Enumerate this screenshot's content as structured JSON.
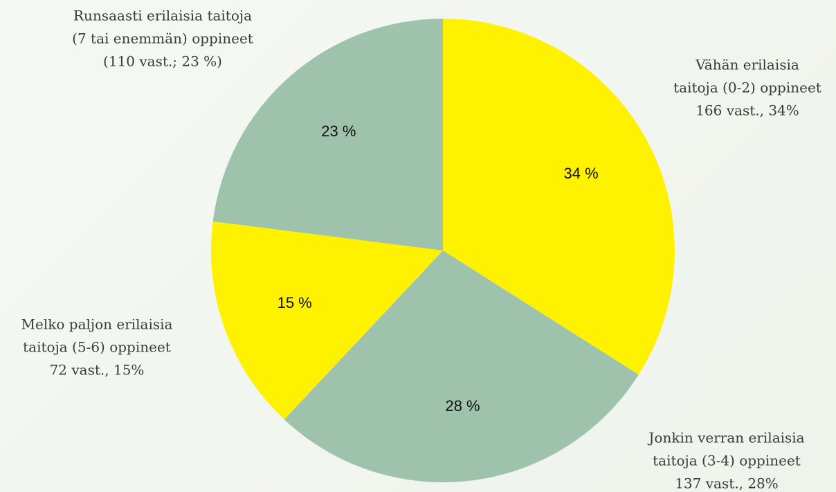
{
  "chart_data": {
    "type": "pie",
    "categories": [
      [
        "Vähän erilaisia",
        "taitoja (0-2) oppineet",
        "166 vast., 34%"
      ],
      [
        "Jonkin verran erilaisia",
        "taitoja (3-4) oppineet",
        "137 vast., 28%"
      ],
      [
        "Melko paljon erilaisia",
        "taitoja (5-6) oppineet",
        "72 vast., 15%"
      ],
      [
        "Runsaasti erilaisia taitoja",
        "(7 tai enemmän) oppineet",
        "(110 vast.; 23 %)"
      ]
    ],
    "values": [
      34,
      28,
      15,
      23
    ],
    "value_labels": [
      "34 %",
      "28 %",
      "15 %",
      "23 %"
    ],
    "colors": [
      "#fff200",
      "#9ec2ab",
      "#fff200",
      "#9ec2ab"
    ]
  }
}
